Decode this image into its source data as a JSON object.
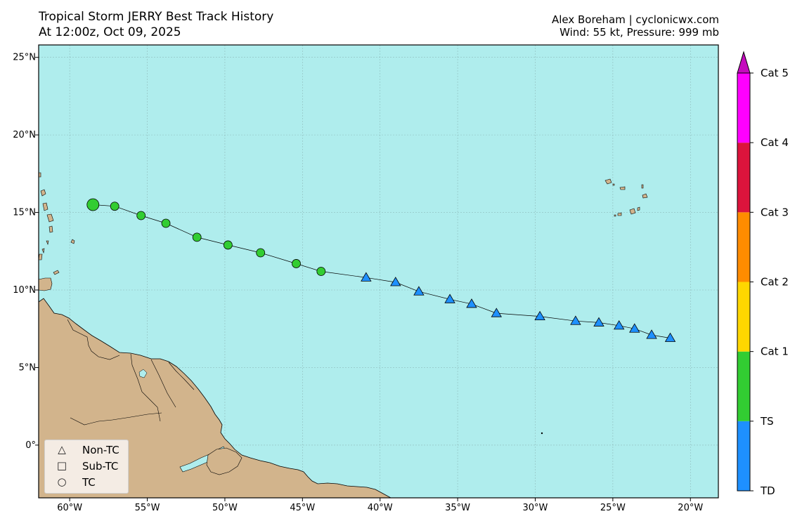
{
  "header": {
    "title_line1": "Tropical Storm JERRY Best Track History",
    "title_line2": "At 12:00z, Oct 09, 2025",
    "credit_line1": "Alex Boreham | cyclonicwx.com",
    "credit_line2": "Wind: 55 kt, Pressure: 999 mb"
  },
  "map": {
    "lon_range": [
      -62,
      -18.2
    ],
    "lat_range": [
      -3.4,
      25.8
    ],
    "ocean_color": "#afeded",
    "land_color": "#d2b48c",
    "grid": true,
    "lon_ticks": [
      {
        "value": -60,
        "label": "60°W"
      },
      {
        "value": -55,
        "label": "55°W"
      },
      {
        "value": -50,
        "label": "50°W"
      },
      {
        "value": -45,
        "label": "45°W"
      },
      {
        "value": -40,
        "label": "40°W"
      },
      {
        "value": -35,
        "label": "35°W"
      },
      {
        "value": -30,
        "label": "30°W"
      },
      {
        "value": -25,
        "label": "25°W"
      },
      {
        "value": -20,
        "label": "20°W"
      }
    ],
    "lat_ticks": [
      {
        "value": 25,
        "label": "25°N"
      },
      {
        "value": 20,
        "label": "20°N"
      },
      {
        "value": 15,
        "label": "15°N"
      },
      {
        "value": 10,
        "label": "10°N"
      },
      {
        "value": 5,
        "label": "5°N"
      },
      {
        "value": 0,
        "label": "0°"
      }
    ]
  },
  "track": [
    {
      "lon": -21.3,
      "lat": 6.9,
      "type": "Non-TC",
      "category": "TD"
    },
    {
      "lon": -22.5,
      "lat": 7.1,
      "type": "Non-TC",
      "category": "TD"
    },
    {
      "lon": -23.6,
      "lat": 7.5,
      "type": "Non-TC",
      "category": "TD"
    },
    {
      "lon": -24.6,
      "lat": 7.7,
      "type": "Non-TC",
      "category": "TD"
    },
    {
      "lon": -25.9,
      "lat": 7.9,
      "type": "Non-TC",
      "category": "TD"
    },
    {
      "lon": -27.4,
      "lat": 8.0,
      "type": "Non-TC",
      "category": "TD"
    },
    {
      "lon": -29.7,
      "lat": 8.3,
      "type": "Non-TC",
      "category": "TD"
    },
    {
      "lon": -32.5,
      "lat": 8.5,
      "type": "Non-TC",
      "category": "TD"
    },
    {
      "lon": -34.1,
      "lat": 9.1,
      "type": "Non-TC",
      "category": "TD"
    },
    {
      "lon": -35.5,
      "lat": 9.4,
      "type": "Non-TC",
      "category": "TD"
    },
    {
      "lon": -37.5,
      "lat": 9.9,
      "type": "Non-TC",
      "category": "TD"
    },
    {
      "lon": -39.0,
      "lat": 10.5,
      "type": "Non-TC",
      "category": "TD"
    },
    {
      "lon": -40.9,
      "lat": 10.8,
      "type": "Non-TC",
      "category": "TD"
    },
    {
      "lon": -43.8,
      "lat": 11.2,
      "type": "TC",
      "category": "TS"
    },
    {
      "lon": -45.4,
      "lat": 11.7,
      "type": "TC",
      "category": "TS"
    },
    {
      "lon": -47.7,
      "lat": 12.4,
      "type": "TC",
      "category": "TS"
    },
    {
      "lon": -49.8,
      "lat": 12.9,
      "type": "TC",
      "category": "TS"
    },
    {
      "lon": -51.8,
      "lat": 13.4,
      "type": "TC",
      "category": "TS"
    },
    {
      "lon": -53.8,
      "lat": 14.3,
      "type": "TC",
      "category": "TS"
    },
    {
      "lon": -55.4,
      "lat": 14.8,
      "type": "TC",
      "category": "TS"
    },
    {
      "lon": -57.1,
      "lat": 15.4,
      "type": "TC",
      "category": "TS"
    },
    {
      "lon": -58.5,
      "lat": 15.5,
      "type": "TC",
      "category": "TS",
      "current": true
    }
  ],
  "legend": {
    "items": [
      {
        "symbol": "△",
        "label": "Non-TC"
      },
      {
        "symbol": "□",
        "label": "Sub-TC"
      },
      {
        "symbol": "○",
        "label": "TC"
      }
    ]
  },
  "colorbar": {
    "categories": [
      {
        "label": "TD",
        "color": "#1e90ff"
      },
      {
        "label": "TS",
        "color": "#32cd32"
      },
      {
        "label": "Cat 1",
        "color": "#ffd700"
      },
      {
        "label": "Cat 2",
        "color": "#ff8c00"
      },
      {
        "label": "Cat 3",
        "color": "#dc143c"
      },
      {
        "label": "Cat 4",
        "color": "#ff00ff"
      }
    ],
    "extend_color": "#c40bbd",
    "tick_labels": [
      "TD",
      "TS",
      "Cat 1",
      "Cat 2",
      "Cat 3",
      "Cat 4",
      "Cat 5"
    ]
  }
}
